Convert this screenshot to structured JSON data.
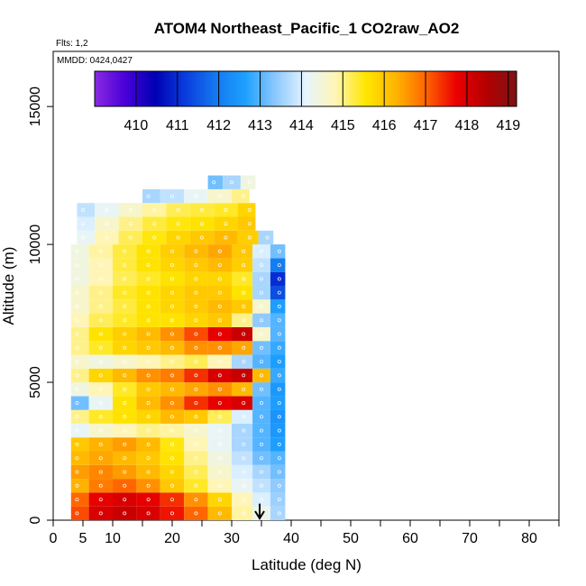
{
  "chart_data": {
    "type": "heatmap",
    "title": "ATOM4 Northeast_Pacific_1 CO2raw_AO2",
    "annotations": {
      "flights": "Flts: 1,2",
      "dates": "MMDD: 0424,0427"
    },
    "xlabel": "Latitude (deg N)",
    "ylabel": "Altitude (m)",
    "xlim": [
      0,
      85
    ],
    "ylim": [
      0,
      17000
    ],
    "x_ticks": [
      0,
      5,
      10,
      20,
      30,
      40,
      50,
      60,
      70,
      80
    ],
    "x_minor_ticks": [
      15,
      25,
      35,
      45,
      55,
      65,
      75,
      85
    ],
    "y_ticks": [
      0,
      5000,
      10000,
      15000
    ],
    "colorbar": {
      "label_values": [
        410,
        411,
        412,
        413,
        414,
        415,
        416,
        417,
        418,
        419
      ],
      "range": [
        409,
        419.2
      ],
      "colors": [
        "#8a2be2",
        "#4b00d8",
        "#0000b4",
        "#0a3cdc",
        "#1478f0",
        "#1ea0ff",
        "#8cc8ff",
        "#e6f5ff",
        "#fff5b4",
        "#ffe600",
        "#ffb400",
        "#ff6400",
        "#eb0000",
        "#b40000",
        "#7d1414"
      ]
    },
    "marker": {
      "x": 34.7,
      "label": "arrow"
    },
    "rows": [
      {
        "z0": 0,
        "z1": 500,
        "lat": [
          4,
          8,
          12,
          16,
          20,
          24,
          28,
          32,
          35,
          38
        ],
        "co2": [
          417.2,
          418.0,
          418.2,
          418.0,
          417.6,
          417.0,
          416.2,
          414.9,
          414.3,
          413.6
        ]
      },
      {
        "z0": 500,
        "z1": 1000,
        "lat": [
          4,
          8,
          12,
          16,
          20,
          24,
          28,
          32,
          35,
          38
        ],
        "co2": [
          417.0,
          417.8,
          418.0,
          417.8,
          417.4,
          416.6,
          415.8,
          414.8,
          414.0,
          413.5
        ]
      },
      {
        "z0": 1000,
        "z1": 1500,
        "lat": [
          4,
          8,
          12,
          16,
          20,
          24,
          28,
          32,
          35,
          38
        ],
        "co2": [
          416.3,
          416.8,
          417.0,
          416.6,
          416.0,
          415.4,
          414.8,
          414.2,
          413.8,
          413.4
        ]
      },
      {
        "z0": 1500,
        "z1": 2000,
        "lat": [
          4,
          8,
          12,
          16,
          20,
          24,
          28,
          32,
          35,
          38
        ],
        "co2": [
          416.5,
          416.7,
          416.5,
          416.2,
          415.8,
          415.2,
          414.6,
          414.0,
          413.6,
          413.2
        ]
      },
      {
        "z0": 2000,
        "z1": 2500,
        "lat": [
          4,
          8,
          12,
          16,
          20,
          24,
          28,
          32,
          35,
          38
        ],
        "co2": [
          416.2,
          416.4,
          416.2,
          416.0,
          415.6,
          415.0,
          414.4,
          413.8,
          413.2,
          413.0
        ]
      },
      {
        "z0": 2500,
        "z1": 3000,
        "lat": [
          4,
          8,
          12,
          16,
          20,
          24,
          28,
          32,
          35,
          38
        ],
        "co2": [
          416.0,
          416.3,
          416.5,
          416.2,
          415.5,
          414.8,
          414.2,
          413.6,
          413.0,
          412.6
        ]
      },
      {
        "z0": 3000,
        "z1": 3500,
        "lat": [
          4,
          8,
          12,
          16,
          20,
          24,
          28,
          32,
          35,
          38
        ],
        "co2": [
          414.2,
          414.6,
          414.8,
          415.0,
          414.9,
          414.6,
          414.2,
          413.6,
          413.0,
          412.5
        ]
      },
      {
        "z0": 3500,
        "z1": 4000,
        "lat": [
          4,
          8,
          12,
          16,
          20,
          24,
          28,
          32,
          35,
          38
        ],
        "co2": [
          415.0,
          415.4,
          415.6,
          415.8,
          416.2,
          416.0,
          415.2,
          414.0,
          413.0,
          412.4
        ]
      },
      {
        "z0": 4000,
        "z1": 4500,
        "lat": [
          4,
          8,
          12,
          16,
          20,
          24,
          28,
          32,
          35,
          38
        ],
        "co2": [
          413.2,
          414.2,
          415.6,
          416.2,
          416.6,
          417.4,
          417.8,
          418.0,
          413.0,
          412.6
        ]
      },
      {
        "z0": 4500,
        "z1": 5000,
        "lat": [
          4,
          8,
          12,
          16,
          20,
          24,
          28,
          32,
          35,
          38
        ],
        "co2": [
          414.4,
          414.8,
          415.4,
          416.0,
          416.2,
          416.4,
          416.6,
          416.2,
          413.2,
          412.5
        ]
      },
      {
        "z0": 5000,
        "z1": 5500,
        "lat": [
          4,
          8,
          12,
          16,
          20,
          24,
          28,
          32,
          35,
          38
        ],
        "co2": [
          415.0,
          415.8,
          416.2,
          416.6,
          416.8,
          417.4,
          418.0,
          418.2,
          416.2,
          412.8
        ]
      },
      {
        "z0": 5500,
        "z1": 6000,
        "lat": [
          4,
          8,
          12,
          16,
          20,
          24,
          28,
          32,
          35,
          38
        ],
        "co2": [
          414.6,
          414.4,
          414.6,
          414.8,
          415.0,
          415.2,
          414.8,
          413.6,
          413.0,
          412.6
        ]
      },
      {
        "z0": 6000,
        "z1": 6500,
        "lat": [
          4,
          8,
          12,
          16,
          20,
          24,
          28,
          32,
          35,
          38
        ],
        "co2": [
          415.0,
          415.4,
          415.8,
          416.0,
          416.2,
          416.6,
          416.6,
          416.4,
          413.2,
          412.8
        ]
      },
      {
        "z0": 6500,
        "z1": 7000,
        "lat": [
          4,
          8,
          12,
          16,
          20,
          24,
          28,
          32,
          35,
          38
        ],
        "co2": [
          415.0,
          415.6,
          415.9,
          416.2,
          416.6,
          417.2,
          417.8,
          418.2,
          414.6,
          413.0
        ]
      },
      {
        "z0": 7000,
        "z1": 7500,
        "lat": [
          4,
          8,
          12,
          16,
          20,
          24,
          28,
          32,
          35,
          38
        ],
        "co2": [
          414.8,
          415.2,
          415.4,
          415.6,
          415.6,
          415.8,
          416.0,
          415.0,
          413.4,
          413.0
        ]
      },
      {
        "z0": 7500,
        "z1": 8000,
        "lat": [
          4,
          8,
          12,
          16,
          20,
          24,
          28,
          32,
          35,
          38
        ],
        "co2": [
          414.6,
          415.0,
          415.3,
          415.6,
          415.8,
          416.0,
          416.2,
          416.0,
          414.6,
          412.6
        ]
      },
      {
        "z0": 8000,
        "z1": 8500,
        "lat": [
          4,
          8,
          12,
          16,
          20,
          24,
          28,
          32,
          35,
          38
        ],
        "co2": [
          414.6,
          415.0,
          415.4,
          415.6,
          415.8,
          416.0,
          416.0,
          415.6,
          413.6,
          411.4
        ]
      },
      {
        "z0": 8500,
        "z1": 9000,
        "lat": [
          4,
          8,
          12,
          16,
          20,
          24,
          28,
          32,
          35,
          38
        ],
        "co2": [
          414.4,
          414.8,
          415.2,
          415.4,
          415.6,
          415.8,
          415.8,
          415.4,
          413.6,
          411.0
        ]
      },
      {
        "z0": 9000,
        "z1": 9500,
        "lat": [
          4,
          8,
          12,
          16,
          20,
          24,
          28,
          32,
          35,
          38
        ],
        "co2": [
          414.4,
          414.8,
          415.3,
          415.6,
          415.8,
          416.0,
          416.2,
          415.9,
          413.8,
          412.0
        ]
      },
      {
        "z0": 9500,
        "z1": 10000,
        "lat": [
          4,
          8,
          12,
          16,
          20,
          24,
          28,
          32,
          35,
          38
        ],
        "co2": [
          414.4,
          414.9,
          415.3,
          415.6,
          415.9,
          416.2,
          416.4,
          416.0,
          414.0,
          413.2
        ]
      },
      {
        "z0": 10000,
        "z1": 10500,
        "lat": [
          5,
          9,
          13,
          17,
          21,
          25,
          29,
          33,
          36
        ],
        "co2": [
          414.2,
          414.8,
          415.2,
          415.5,
          415.8,
          416.0,
          416.2,
          415.9,
          413.6
        ]
      },
      {
        "z0": 10500,
        "z1": 11000,
        "lat": [
          5,
          9,
          13,
          17,
          21,
          25,
          29,
          33
        ],
        "co2": [
          414.0,
          414.6,
          415.0,
          415.3,
          415.5,
          415.6,
          415.8,
          416.0
        ]
      },
      {
        "z0": 11000,
        "z1": 11500,
        "lat": [
          5,
          9,
          13,
          17,
          21,
          25,
          29,
          33
        ],
        "co2": [
          413.8,
          414.2,
          414.6,
          414.9,
          415.2,
          415.3,
          415.4,
          415.8
        ]
      },
      {
        "z0": 11500,
        "z1": 12000,
        "lat": [
          16,
          20,
          24,
          28,
          32
        ],
        "co2": [
          413.6,
          413.8,
          414.2,
          414.6,
          415.0
        ]
      },
      {
        "z0": 12000,
        "z1": 12500,
        "lat": [
          27,
          30,
          33
        ],
        "co2": [
          413.2,
          413.6,
          414.4
        ]
      }
    ],
    "grid": false,
    "legend": "colorbar top"
  }
}
